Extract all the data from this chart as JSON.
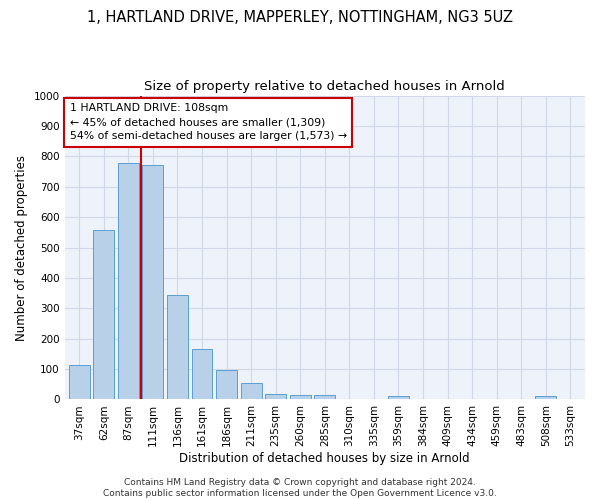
{
  "title1": "1, HARTLAND DRIVE, MAPPERLEY, NOTTINGHAM, NG3 5UZ",
  "title2": "Size of property relative to detached houses in Arnold",
  "xlabel": "Distribution of detached houses by size in Arnold",
  "ylabel": "Number of detached properties",
  "categories": [
    "37sqm",
    "62sqm",
    "87sqm",
    "111sqm",
    "136sqm",
    "161sqm",
    "186sqm",
    "211sqm",
    "235sqm",
    "260sqm",
    "285sqm",
    "310sqm",
    "335sqm",
    "359sqm",
    "384sqm",
    "409sqm",
    "434sqm",
    "459sqm",
    "483sqm",
    "508sqm",
    "533sqm"
  ],
  "values": [
    113,
    557,
    779,
    770,
    343,
    165,
    98,
    55,
    18,
    14,
    14,
    0,
    0,
    11,
    0,
    0,
    0,
    0,
    0,
    11,
    0
  ],
  "bar_color": "#b8d0e8",
  "bar_edge_color": "#5a9fd4",
  "vline_color": "#cc0000",
  "annotation_text": "1 HARTLAND DRIVE: 108sqm\n← 45% of detached houses are smaller (1,309)\n54% of semi-detached houses are larger (1,573) →",
  "annotation_box_color": "#ffffff",
  "annotation_box_edge_color": "#cc0000",
  "ylim": [
    0,
    1000
  ],
  "yticks": [
    0,
    100,
    200,
    300,
    400,
    500,
    600,
    700,
    800,
    900,
    1000
  ],
  "grid_color": "#d0d8e8",
  "bg_color": "#eef2fa",
  "footer": "Contains HM Land Registry data © Crown copyright and database right 2024.\nContains public sector information licensed under the Open Government Licence v3.0.",
  "title1_fontsize": 10.5,
  "title2_fontsize": 9.5,
  "xlabel_fontsize": 8.5,
  "ylabel_fontsize": 8.5,
  "tick_fontsize": 7.5,
  "footer_fontsize": 6.5
}
